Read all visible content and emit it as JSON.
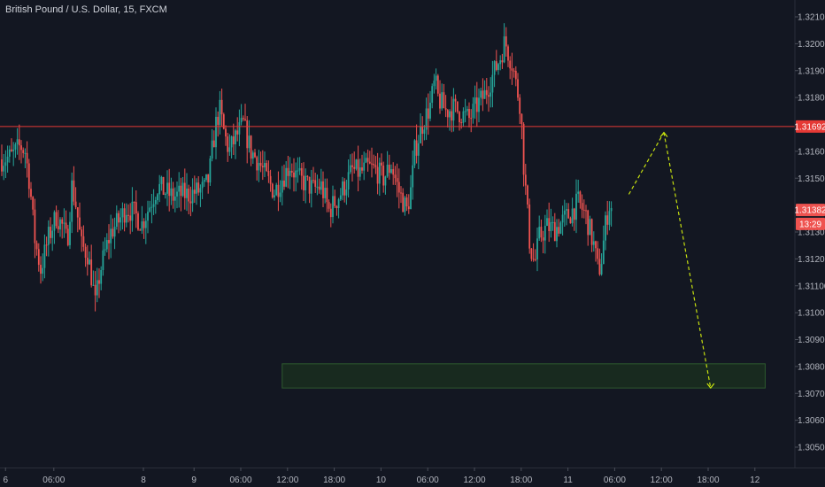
{
  "header": {
    "title": "British Pound / U.S. Dollar, 15, FXCM"
  },
  "colors": {
    "background": "#131722",
    "up": "#26a69a",
    "down": "#ef5350",
    "resistance_line": "#e53935",
    "projection": "#c6e00f",
    "target_zone": "#1e3a1e",
    "target_zone_border": "#2e5a2e",
    "axis_text": "#b2b5be"
  },
  "chart_data": {
    "type": "candlestick",
    "symbol": "British Pound / U.S. Dollar",
    "interval": "15",
    "source": "FXCM",
    "y_axis": {
      "ticks": [
        "1.32100",
        "1.32000",
        "1.31900",
        "1.31800",
        "1.31600",
        "1.31500",
        "1.31300",
        "1.31200",
        "1.31100",
        "1.31000",
        "1.30900",
        "1.30800",
        "1.30700",
        "1.30600",
        "1.30500"
      ],
      "range": [
        1.3043,
        1.3215
      ]
    },
    "x_axis": {
      "ticks": [
        "6",
        "06:00",
        "8",
        "9",
        "06:00",
        "12:00",
        "18:00",
        "10",
        "06:00",
        "12:00",
        "18:00",
        "11",
        "06:00",
        "12:00",
        "18:00",
        "12",
        "06:00"
      ],
      "time_range_hours": [
        0,
        99
      ]
    },
    "price_tags": [
      {
        "label": "1.31692",
        "value": 1.31692,
        "color": "#e53935"
      },
      {
        "label": "1.31382",
        "value": 1.31382,
        "color": "#ef5350"
      },
      {
        "label": "13:29",
        "value": 1.3133,
        "color": "#ef5350"
      }
    ],
    "horizontal_line": {
      "value": 1.31692
    },
    "target_zone": {
      "from_hours": 36,
      "to_hours": 98,
      "low": 1.3072,
      "high": 1.3081
    },
    "projection": [
      {
        "t": 80.5,
        "p": 1.3144
      },
      {
        "t": 85,
        "p": 1.3167
      },
      {
        "t": 91,
        "p": 1.3072
      }
    ],
    "path": [
      [
        0,
        1.3157
      ],
      [
        1.2,
        1.3158
      ],
      [
        2.4,
        1.3162
      ],
      [
        3,
        1.316
      ],
      [
        3.6,
        1.3148
      ],
      [
        4.2,
        1.3128
      ],
      [
        5,
        1.3116
      ],
      [
        6,
        1.3128
      ],
      [
        7,
        1.3136
      ],
      [
        7.8,
        1.3132
      ],
      [
        8.4,
        1.3126
      ],
      [
        9,
        1.3147
      ],
      [
        9.6,
        1.3139
      ],
      [
        10.2,
        1.3125
      ],
      [
        11,
        1.3122
      ],
      [
        11.6,
        1.3112
      ],
      [
        12,
        1.3103
      ],
      [
        12.6,
        1.3115
      ],
      [
        13.2,
        1.3122
      ],
      [
        14,
        1.313
      ],
      [
        15,
        1.3134
      ],
      [
        16,
        1.3139
      ],
      [
        17,
        1.3137
      ],
      [
        18,
        1.3133
      ],
      [
        19,
        1.314
      ],
      [
        20,
        1.3147
      ],
      [
        21,
        1.3145
      ],
      [
        22,
        1.3143
      ],
      [
        23,
        1.3144
      ],
      [
        24,
        1.3144
      ],
      [
        25,
        1.3145
      ],
      [
        26,
        1.3146
      ],
      [
        26.6,
        1.315
      ],
      [
        27,
        1.316
      ],
      [
        27.6,
        1.3172
      ],
      [
        28,
        1.3175
      ],
      [
        28.6,
        1.3166
      ],
      [
        29.2,
        1.316
      ],
      [
        30,
        1.3165
      ],
      [
        31,
        1.317
      ],
      [
        32,
        1.316
      ],
      [
        33,
        1.3156
      ],
      [
        34,
        1.315
      ],
      [
        35,
        1.3145
      ],
      [
        36,
        1.315
      ],
      [
        37,
        1.3155
      ],
      [
        38,
        1.315
      ],
      [
        39,
        1.3148
      ],
      [
        40,
        1.3146
      ],
      [
        41,
        1.3147
      ],
      [
        42,
        1.3138
      ],
      [
        43,
        1.3142
      ],
      [
        44,
        1.3147
      ],
      [
        45,
        1.3153
      ],
      [
        46,
        1.3152
      ],
      [
        47,
        1.3154
      ],
      [
        48,
        1.3153
      ],
      [
        49,
        1.315
      ],
      [
        50,
        1.3155
      ],
      [
        51,
        1.3145
      ],
      [
        52,
        1.3138
      ],
      [
        52.6,
        1.3147
      ],
      [
        53,
        1.316
      ],
      [
        54,
        1.317
      ],
      [
        55,
        1.3177
      ],
      [
        55.6,
        1.3186
      ],
      [
        56,
        1.318
      ],
      [
        57,
        1.3175
      ],
      [
        58,
        1.3176
      ],
      [
        59,
        1.3174
      ],
      [
        60,
        1.3172
      ],
      [
        61,
        1.3177
      ],
      [
        62,
        1.3181
      ],
      [
        63,
        1.3188
      ],
      [
        64,
        1.3195
      ],
      [
        64.6,
        1.3201
      ],
      [
        65,
        1.3197
      ],
      [
        65.6,
        1.3192
      ],
      [
        66,
        1.3185
      ],
      [
        66.6,
        1.3177
      ],
      [
        67,
        1.3155
      ],
      [
        67.4,
        1.314
      ],
      [
        67.8,
        1.3125
      ],
      [
        68.4,
        1.3118
      ],
      [
        69,
        1.3128
      ],
      [
        70,
        1.3132
      ],
      [
        71,
        1.3131
      ],
      [
        72,
        1.3134
      ],
      [
        73,
        1.3137
      ],
      [
        74,
        1.3141
      ],
      [
        75,
        1.3136
      ],
      [
        76,
        1.3125
      ],
      [
        76.6,
        1.3115
      ],
      [
        77,
        1.312
      ],
      [
        77.6,
        1.3135
      ],
      [
        78,
        1.314
      ],
      [
        78.4,
        1.3138
      ]
    ]
  }
}
